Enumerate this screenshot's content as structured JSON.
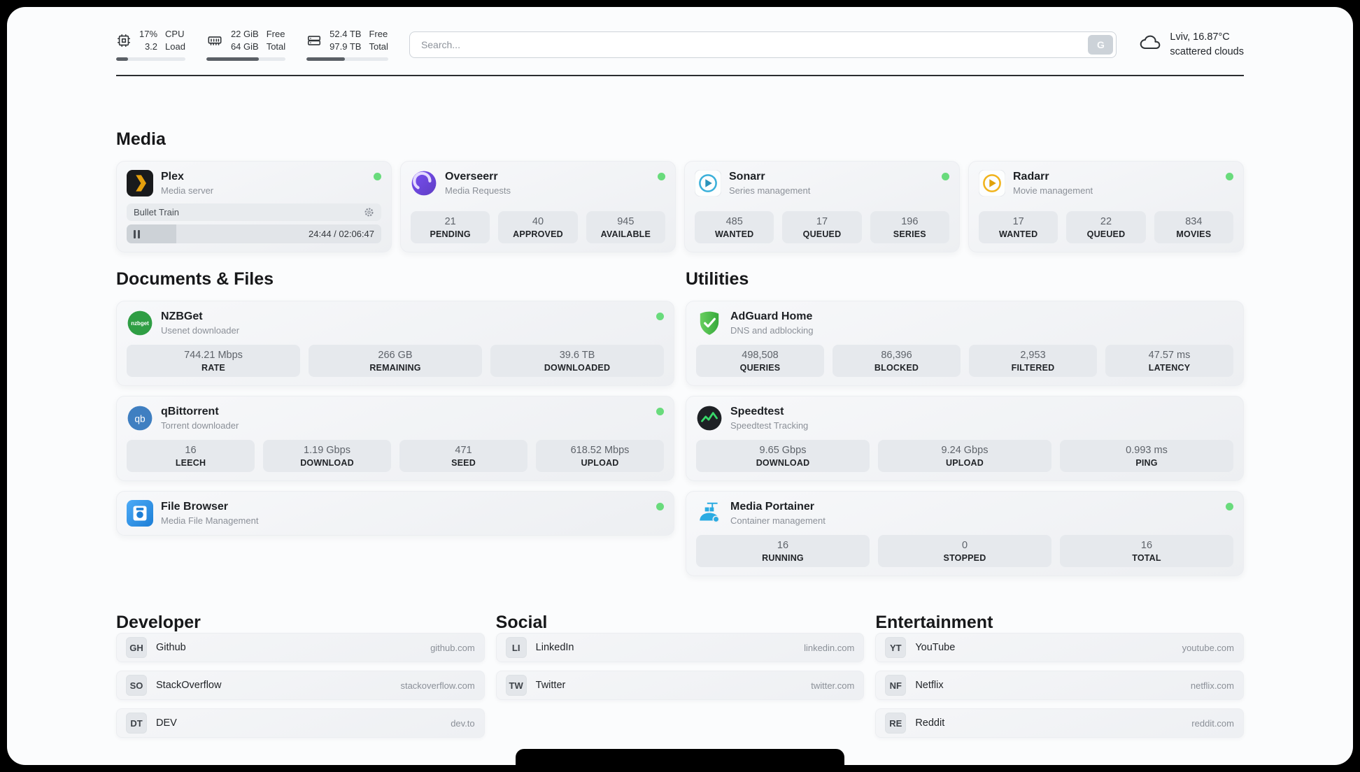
{
  "colors": {
    "status_online": "#69db7c",
    "panel_bg": "#fbfcfd",
    "card_bg": "#f1f3f5",
    "plex_gold": "#e5a00d",
    "overseerr_purple": "#6741d9",
    "sonarr_blue": "#3bb0da",
    "radarr_yellow": "#f1b31c",
    "nzbget_green": "#2f9e44",
    "qbittorrent_blue": "#3f7fc1",
    "filebrowser_blue": "#1c7ed6",
    "adguard_green": "#37a93c",
    "speedtest_pulse_green": "#38d96a",
    "portainer_blue": "#2aabe2"
  },
  "icons": {
    "cpu": "cpu-chip-outline",
    "memory": "ram-stick-outline",
    "storage": "server-drives-outline",
    "search_engine": "letter-G",
    "weather": "cloud-outline",
    "plex": "dark-square-gold-chevron",
    "overseerr": "purple-circle-swirl",
    "sonarr": "blue-play-circle",
    "radarr": "yellow-play-circle",
    "nzbget": "green-circle-wordmark",
    "qbittorrent": "blue-circle-qb",
    "filebrowser": "blue-square-floppy",
    "adguard": "green-shield-check",
    "speedtest": "dark-circle-pulse",
    "portainer": "whale-crane-containers",
    "settings": "gear",
    "pause": "pause-bars",
    "status": "green-dot"
  },
  "topbar": {
    "cpu": {
      "value_top": "17%",
      "value_bottom": "3.2",
      "label_top": "CPU",
      "label_bottom": "Load",
      "progress": 17
    },
    "memory": {
      "value_top": "22 GiB",
      "value_bottom": "64 GiB",
      "label_top": "Free",
      "label_bottom": "Total",
      "progress": 66
    },
    "storage": {
      "value_top": "52.4 TB",
      "value_bottom": "97.9 TB",
      "label_top": "Free",
      "label_bottom": "Total",
      "progress": 47
    },
    "search": {
      "placeholder": "Search...",
      "engine_badge": "G"
    },
    "weather": {
      "location": "Lviv, 16.87°C",
      "condition": "scattered clouds"
    }
  },
  "media": {
    "title": "Media",
    "plex": {
      "name": "Plex",
      "subtitle": "Media server",
      "status": "online",
      "now_playing": "Bullet Train",
      "elapsed_total": "24:44 / 02:06:47",
      "progress_percent": 19.5
    },
    "overseerr": {
      "name": "Overseerr",
      "subtitle": "Media Requests",
      "status": "online",
      "stats": [
        {
          "value": "21",
          "label": "PENDING"
        },
        {
          "value": "40",
          "label": "APPROVED"
        },
        {
          "value": "945",
          "label": "AVAILABLE"
        }
      ]
    },
    "sonarr": {
      "name": "Sonarr",
      "subtitle": "Series management",
      "status": "online",
      "stats": [
        {
          "value": "485",
          "label": "WANTED"
        },
        {
          "value": "17",
          "label": "QUEUED"
        },
        {
          "value": "196",
          "label": "SERIES"
        }
      ]
    },
    "radarr": {
      "name": "Radarr",
      "subtitle": "Movie management",
      "status": "online",
      "stats": [
        {
          "value": "17",
          "label": "WANTED"
        },
        {
          "value": "22",
          "label": "QUEUED"
        },
        {
          "value": "834",
          "label": "MOVIES"
        }
      ]
    }
  },
  "documents": {
    "title": "Documents & Files",
    "nzbget": {
      "name": "NZBGet",
      "subtitle": "Usenet downloader",
      "status": "online",
      "stats": [
        {
          "value": "744.21 Mbps",
          "label": "RATE"
        },
        {
          "value": "266 GB",
          "label": "REMAINING"
        },
        {
          "value": "39.6 TB",
          "label": "DOWNLOADED"
        }
      ]
    },
    "qbittorrent": {
      "name": "qBittorrent",
      "subtitle": "Torrent downloader",
      "status": "online",
      "stats": [
        {
          "value": "16",
          "label": "LEECH"
        },
        {
          "value": "1.19 Gbps",
          "label": "DOWNLOAD"
        },
        {
          "value": "471",
          "label": "SEED"
        },
        {
          "value": "618.52 Mbps",
          "label": "UPLOAD"
        }
      ]
    },
    "filebrowser": {
      "name": "File Browser",
      "subtitle": "Media File Management",
      "status": "online"
    }
  },
  "utilities": {
    "title": "Utilities",
    "adguard": {
      "name": "AdGuard Home",
      "subtitle": "DNS and adblocking",
      "stats": [
        {
          "value": "498,508",
          "label": "QUERIES"
        },
        {
          "value": "86,396",
          "label": "BLOCKED"
        },
        {
          "value": "2,953",
          "label": "FILTERED"
        },
        {
          "value": "47.57 ms",
          "label": "LATENCY"
        }
      ]
    },
    "speedtest": {
      "name": "Speedtest",
      "subtitle": "Speedtest Tracking",
      "stats": [
        {
          "value": "9.65 Gbps",
          "label": "DOWNLOAD"
        },
        {
          "value": "9.24 Gbps",
          "label": "UPLOAD"
        },
        {
          "value": "0.993 ms",
          "label": "PING"
        }
      ]
    },
    "portainer": {
      "name": "Media Portainer",
      "subtitle": "Container management",
      "status": "online",
      "stats": [
        {
          "value": "16",
          "label": "RUNNING"
        },
        {
          "value": "0",
          "label": "STOPPED"
        },
        {
          "value": "16",
          "label": "TOTAL"
        }
      ]
    }
  },
  "bookmarks": {
    "developer": {
      "title": "Developer",
      "items": [
        {
          "abbr": "GH",
          "name": "Github",
          "url": "github.com"
        },
        {
          "abbr": "SO",
          "name": "StackOverflow",
          "url": "stackoverflow.com"
        },
        {
          "abbr": "DT",
          "name": "DEV",
          "url": "dev.to"
        }
      ]
    },
    "social": {
      "title": "Social",
      "items": [
        {
          "abbr": "LI",
          "name": "LinkedIn",
          "url": "linkedin.com"
        },
        {
          "abbr": "TW",
          "name": "Twitter",
          "url": "twitter.com"
        }
      ]
    },
    "entertainment": {
      "title": "Entertainment",
      "items": [
        {
          "abbr": "YT",
          "name": "YouTube",
          "url": "youtube.com"
        },
        {
          "abbr": "NF",
          "name": "Netflix",
          "url": "netflix.com"
        },
        {
          "abbr": "RE",
          "name": "Reddit",
          "url": "reddit.com"
        }
      ]
    }
  }
}
